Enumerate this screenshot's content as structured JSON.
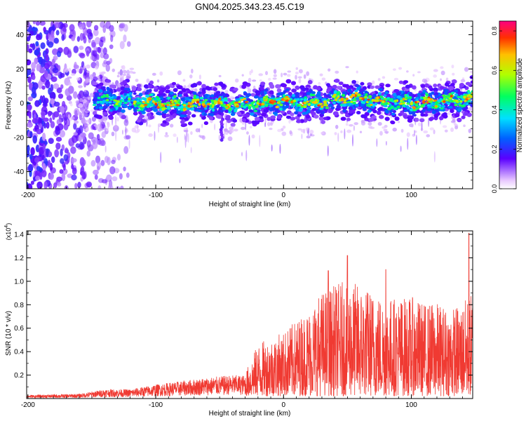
{
  "title": "GN04.2025.343.23.45.C19",
  "colors": {
    "snr_line": "#f03a32",
    "axis": "#000000"
  },
  "chart_data": [
    {
      "type": "heatmap",
      "title": "GN04.2025.343.23.45.C19",
      "xlabel": "Height of straight line (km)",
      "ylabel": "Frequency (Hz)",
      "xlim": [
        -201,
        148
      ],
      "ylim": [
        -50,
        48
      ],
      "xticks": [
        -200,
        -100,
        0,
        100
      ],
      "yticks": [
        -40,
        -20,
        0,
        20,
        40
      ],
      "colorbar": {
        "label": "Normalized spectral amplitude",
        "ticks": [
          0.0,
          0.2,
          0.4,
          0.6,
          0.8
        ],
        "range": [
          0.0,
          0.85
        ]
      },
      "ridge": {
        "description_points_x_km": [
          -145,
          -120,
          -100,
          -80,
          -60,
          -40,
          -20,
          0,
          20,
          40,
          60,
          80,
          100,
          120,
          145
        ],
        "frequency_hz": [
          2,
          1,
          0,
          -1,
          0,
          -1,
          0,
          1,
          0,
          2,
          3,
          1,
          0,
          1,
          3
        ]
      }
    },
    {
      "type": "line",
      "xlabel": "Height of straight line (km)",
      "ylabel": "SNR (10 * v/v)",
      "multiplier_label": "(x10",
      "multiplier_exp": "4",
      "xlim": [
        -201,
        148
      ],
      "ylim": [
        0,
        1.43
      ],
      "xticks": [
        -200,
        -100,
        0,
        100
      ],
      "yticks": [
        0.2,
        0.4,
        0.6,
        0.8,
        1.0,
        1.2,
        1.4
      ],
      "envelope": {
        "x": [
          -201,
          -160,
          -140,
          -120,
          -100,
          -80,
          -60,
          -40,
          -30,
          -20,
          -10,
          0,
          10,
          20,
          30,
          40,
          50,
          60,
          70,
          80,
          90,
          100,
          110,
          120,
          130,
          140,
          148
        ],
        "y": [
          0.03,
          0.04,
          0.08,
          0.08,
          0.12,
          0.15,
          0.18,
          0.2,
          0.2,
          0.45,
          0.5,
          0.55,
          0.65,
          0.75,
          0.9,
          0.95,
          1.0,
          0.95,
          0.9,
          0.85,
          0.85,
          0.85,
          0.8,
          0.8,
          0.75,
          0.8,
          0.9
        ]
      },
      "peaks": [
        {
          "x": 35,
          "y": 1.09
        },
        {
          "x": 50,
          "y": 1.22
        },
        {
          "x": 80,
          "y": 1.1
        },
        {
          "x": 145,
          "y": 1.41
        }
      ]
    }
  ]
}
